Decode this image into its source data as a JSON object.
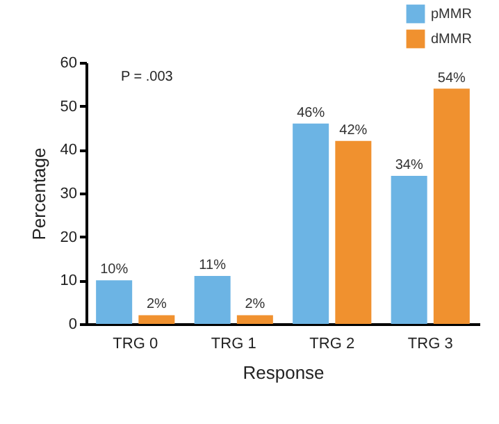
{
  "chart_data": {
    "type": "bar",
    "xlabel": "Response",
    "ylabel": "Percentage",
    "categories": [
      "TRG 0",
      "TRG 1",
      "TRG 2",
      "TRG 3"
    ],
    "series": [
      {
        "name": "pMMR",
        "color": "#6cb4e4",
        "values": [
          10,
          11,
          46,
          34
        ],
        "value_labels": [
          "10%",
          "11%",
          "46%",
          "34%"
        ]
      },
      {
        "name": "dMMR",
        "color": "#f0912f",
        "values": [
          2,
          2,
          42,
          54
        ],
        "value_labels": [
          "2%",
          "2%",
          "42%",
          "54%"
        ]
      }
    ],
    "ylim": [
      0,
      60
    ],
    "yticks": [
      0,
      10,
      20,
      30,
      40,
      50,
      60
    ],
    "legend": "top right",
    "annotations": [
      "P = .003"
    ]
  }
}
